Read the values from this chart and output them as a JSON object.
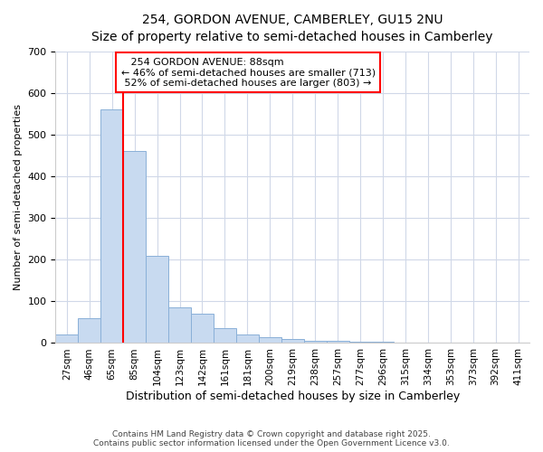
{
  "title_line1": "254, GORDON AVENUE, CAMBERLEY, GU15 2NU",
  "title_line2": "Size of property relative to semi-detached houses in Camberley",
  "xlabel": "Distribution of semi-detached houses by size in Camberley",
  "ylabel": "Number of semi-detached properties",
  "bin_labels": [
    "27sqm",
    "46sqm",
    "65sqm",
    "85sqm",
    "104sqm",
    "123sqm",
    "142sqm",
    "161sqm",
    "181sqm",
    "200sqm",
    "219sqm",
    "238sqm",
    "257sqm",
    "277sqm",
    "296sqm",
    "315sqm",
    "334sqm",
    "353sqm",
    "373sqm",
    "392sqm",
    "411sqm"
  ],
  "bar_values": [
    20,
    60,
    560,
    460,
    210,
    85,
    70,
    35,
    20,
    15,
    10,
    5,
    5,
    3,
    3,
    2,
    2,
    1,
    1,
    1,
    1
  ],
  "bar_color": "#c8daf0",
  "bar_edge_color": "#8ab0d8",
  "vline_color": "red",
  "subject_label": "254 GORDON AVENUE: 88sqm",
  "pct_smaller": 46,
  "pct_smaller_count": 713,
  "pct_larger": 52,
  "pct_larger_count": 803,
  "ylim": [
    0,
    700
  ],
  "yticks": [
    0,
    100,
    200,
    300,
    400,
    500,
    600,
    700
  ],
  "annotation_box_color": "white",
  "annotation_box_edge": "red",
  "footer_line1": "Contains HM Land Registry data © Crown copyright and database right 2025.",
  "footer_line2": "Contains public sector information licensed under the Open Government Licence v3.0.",
  "bg_color": "#ffffff",
  "plot_bg_color": "#ffffff"
}
